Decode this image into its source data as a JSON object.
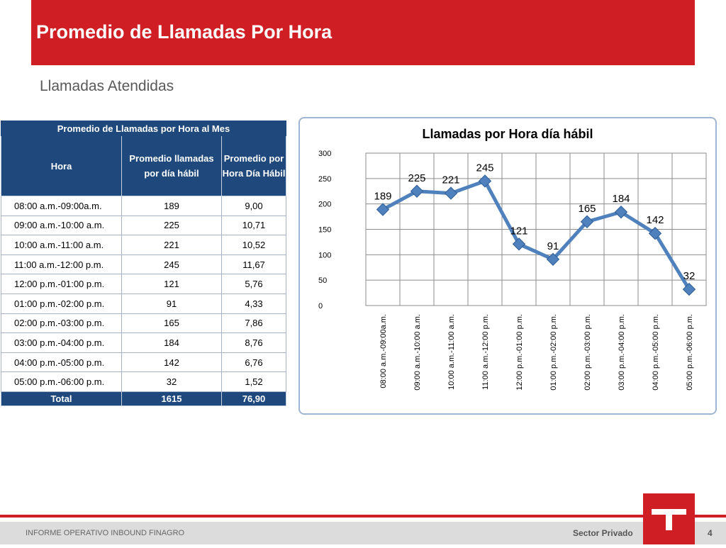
{
  "header": {
    "title": "Promedio de Llamadas Por Hora",
    "subtitle": "Llamadas Atendidas"
  },
  "table": {
    "caption": "Promedio de Llamadas por Hora al Mes",
    "columns": [
      "Hora",
      "Promedio llamadas por día hábil",
      "Promedio por Hora Día Hábil"
    ],
    "rows": [
      [
        "08:00 a.m.-09:00a.m.",
        "189",
        "9,00"
      ],
      [
        "09:00 a.m.-10:00 a.m.",
        "225",
        "10,71"
      ],
      [
        "10:00 a.m.-11:00 a.m.",
        "221",
        "10,52"
      ],
      [
        "11:00 a.m.-12:00 p.m.",
        "245",
        "11,67"
      ],
      [
        "12:00 p.m.-01:00 p.m.",
        "121",
        "5,76"
      ],
      [
        "01:00 p.m.-02:00 p.m.",
        "91",
        "4,33"
      ],
      [
        "02:00 p.m.-03:00 p.m.",
        "165",
        "7,86"
      ],
      [
        "03:00 p.m.-04:00 p.m.",
        "184",
        "8,76"
      ],
      [
        "04:00 p.m.-05:00 p.m.",
        "142",
        "6,76"
      ],
      [
        "05:00 p.m.-06:00 p.m.",
        "32",
        "1,52"
      ]
    ],
    "total": [
      "Total",
      "1615",
      "76,90"
    ]
  },
  "chart_data": {
    "type": "line",
    "title": "Llamadas por Hora día hábil",
    "categories": [
      "08:00 a.m.-09:00a.m.",
      "09:00 a.m.-10:00 a.m.",
      "10:00 a.m.-11:00 a.m.",
      "11:00 a.m.-12:00 p.m.",
      "12:00 p.m.-01:00 p.m.",
      "01:00 p.m.-02:00 p.m.",
      "02:00 p.m.-03:00 p.m.",
      "03:00 p.m.-04:00 p.m.",
      "04:00 p.m.-05:00 p.m.",
      "05:00 p.m.-06:00 p.m."
    ],
    "values": [
      189,
      225,
      221,
      245,
      121,
      91,
      165,
      184,
      142,
      32
    ],
    "ylim": [
      0,
      300
    ],
    "yticks": [
      0,
      50,
      100,
      150,
      200,
      250,
      300
    ],
    "grid": true,
    "legend": "none",
    "line_color": "#4f81bd"
  },
  "footer": {
    "left": "INFORME OPERATIVO INBOUND FINAGRO",
    "right": "Sector Privado",
    "page": "4"
  },
  "colors": {
    "brand_red": "#cf1f25",
    "table_header": "#1f497d"
  }
}
